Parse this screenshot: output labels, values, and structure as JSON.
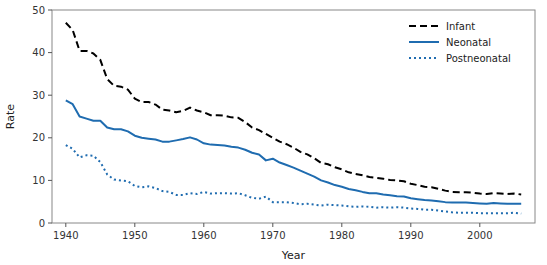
{
  "chart_data": {
    "type": "line",
    "x": [
      1940,
      1941,
      1942,
      1943,
      1944,
      1945,
      1946,
      1947,
      1948,
      1949,
      1950,
      1951,
      1952,
      1953,
      1954,
      1955,
      1956,
      1957,
      1958,
      1959,
      1960,
      1961,
      1962,
      1963,
      1964,
      1965,
      1966,
      1967,
      1968,
      1969,
      1970,
      1971,
      1972,
      1973,
      1974,
      1975,
      1976,
      1977,
      1978,
      1979,
      1980,
      1981,
      1982,
      1983,
      1984,
      1985,
      1986,
      1987,
      1988,
      1989,
      1990,
      1991,
      1992,
      1993,
      1994,
      1995,
      1996,
      1997,
      1998,
      1999,
      2000,
      2001,
      2002,
      2003,
      2004,
      2005,
      2006
    ],
    "series": [
      {
        "name": "Infant",
        "color": "#000000",
        "line_style": "dashed",
        "values": [
          47.0,
          45.3,
          40.4,
          40.4,
          39.8,
          38.3,
          33.8,
          32.2,
          32.0,
          31.3,
          29.2,
          28.4,
          28.4,
          27.8,
          26.6,
          26.4,
          26.0,
          26.3,
          27.1,
          26.4,
          26.0,
          25.3,
          25.3,
          25.2,
          24.8,
          24.7,
          23.7,
          22.4,
          21.8,
          20.9,
          20.0,
          19.1,
          18.5,
          17.7,
          16.7,
          16.1,
          15.2,
          14.1,
          13.8,
          13.1,
          12.6,
          11.9,
          11.5,
          11.2,
          10.8,
          10.6,
          10.4,
          10.1,
          10.0,
          9.8,
          9.2,
          8.9,
          8.5,
          8.4,
          8.0,
          7.6,
          7.3,
          7.2,
          7.2,
          7.1,
          6.9,
          6.8,
          7.0,
          6.9,
          6.8,
          6.9,
          6.7
        ]
      },
      {
        "name": "Neonatal",
        "color": "#1f6cb0",
        "line_style": "solid",
        "values": [
          28.8,
          27.9,
          25.0,
          24.5,
          24.0,
          24.0,
          22.4,
          22.0,
          22.0,
          21.5,
          20.5,
          20.0,
          19.8,
          19.6,
          19.1,
          19.1,
          19.4,
          19.7,
          20.1,
          19.6,
          18.7,
          18.4,
          18.3,
          18.2,
          17.9,
          17.7,
          17.2,
          16.5,
          16.1,
          14.7,
          15.1,
          14.2,
          13.6,
          13.0,
          12.3,
          11.6,
          10.9,
          10.0,
          9.5,
          8.9,
          8.5,
          8.0,
          7.7,
          7.3,
          7.0,
          7.0,
          6.7,
          6.5,
          6.3,
          6.2,
          5.8,
          5.6,
          5.4,
          5.3,
          5.1,
          4.9,
          4.8,
          4.8,
          4.8,
          4.7,
          4.6,
          4.5,
          4.7,
          4.6,
          4.5,
          4.5,
          4.5
        ]
      },
      {
        "name": "Postneonatal",
        "color": "#1f6cb0",
        "line_style": "dotted",
        "values": [
          18.3,
          17.4,
          15.4,
          15.9,
          15.8,
          14.3,
          11.4,
          10.2,
          10.0,
          9.8,
          8.7,
          8.4,
          8.6,
          8.2,
          7.5,
          7.3,
          6.6,
          6.6,
          7.0,
          6.8,
          7.3,
          6.9,
          7.0,
          7.0,
          6.9,
          7.0,
          6.5,
          5.9,
          5.7,
          6.2,
          4.9,
          4.9,
          4.9,
          4.7,
          4.4,
          4.5,
          4.3,
          4.1,
          4.3,
          4.2,
          4.1,
          3.9,
          3.8,
          3.9,
          3.8,
          3.6,
          3.7,
          3.6,
          3.7,
          3.6,
          3.4,
          3.3,
          3.1,
          3.1,
          2.9,
          2.7,
          2.5,
          2.4,
          2.4,
          2.4,
          2.3,
          2.3,
          2.3,
          2.3,
          2.3,
          2.4,
          2.2
        ]
      }
    ],
    "xlabel": "Year",
    "ylabel": "Rate",
    "xlim": [
      1938,
      2008
    ],
    "xticks": [
      1940,
      1950,
      1960,
      1970,
      1980,
      1990,
      2000
    ],
    "ylim": [
      0,
      50
    ],
    "yticks": [
      0,
      10,
      20,
      30,
      40,
      50
    ],
    "legend": "upper right",
    "grid": false
  }
}
